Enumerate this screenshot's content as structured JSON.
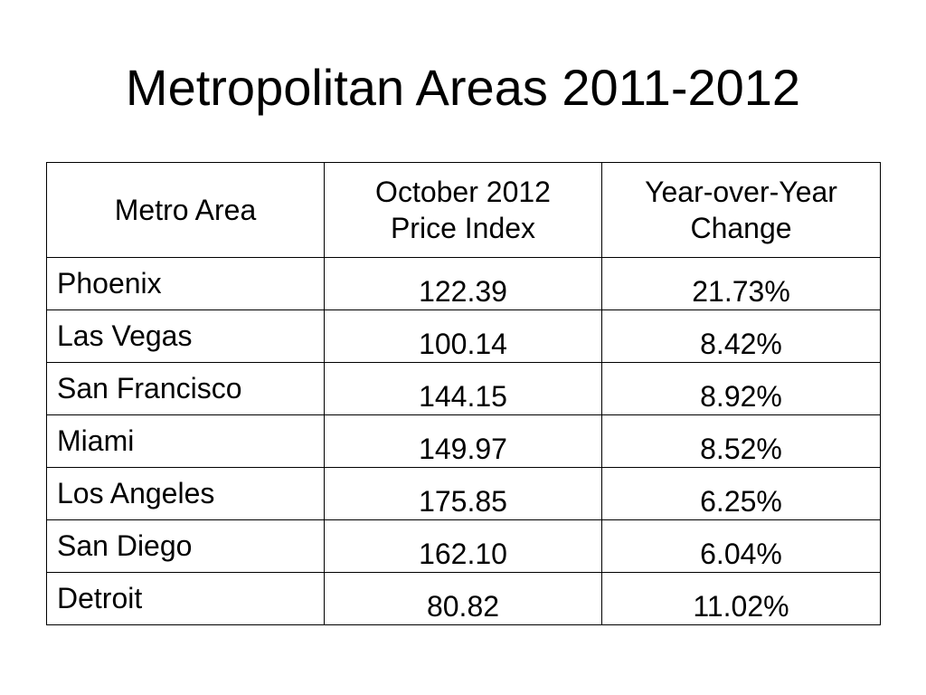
{
  "slide": {
    "title": "Metropolitan Areas 2011-2012"
  },
  "table": {
    "headers": [
      {
        "lines": [
          "Metro Area"
        ]
      },
      {
        "lines": [
          "October 2012",
          "Price Index"
        ]
      },
      {
        "lines": [
          "Year-over-Year",
          "Change"
        ]
      }
    ],
    "rows": [
      {
        "metro": "Phoenix",
        "index": "122.39",
        "change": "21.73%"
      },
      {
        "metro": "Las Vegas",
        "index": "100.14",
        "change": "8.42%"
      },
      {
        "metro": "San Francisco",
        "index": "144.15",
        "change": "8.92%"
      },
      {
        "metro": "Miami",
        "index": "149.97",
        "change": "8.52%"
      },
      {
        "metro": "Los Angeles",
        "index": "175.85",
        "change": "6.25%"
      },
      {
        "metro": "San Diego",
        "index": "162.10",
        "change": "6.04%"
      },
      {
        "metro": "Detroit",
        "index": "80.82",
        "change": "11.02%"
      }
    ]
  }
}
